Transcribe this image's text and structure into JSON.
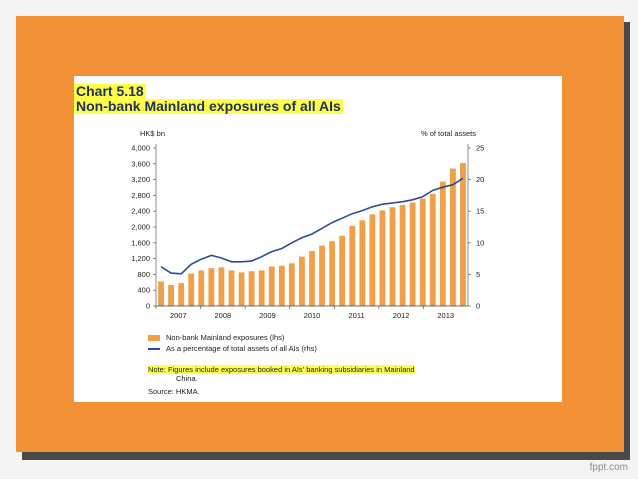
{
  "slide": {
    "watermark": "fppt.com"
  },
  "chart_data": {
    "type": "bar",
    "title_line1": "Chart 5.18",
    "title_line2": "Non-bank Mainland exposures of all AIs",
    "left_axis_label": "HK$ bn",
    "right_axis_label": "% of total assets",
    "x_tick_labels": [
      "2007",
      "2008",
      "2009",
      "2010",
      "2011",
      "2012",
      "2013"
    ],
    "y_left_ticks": [
      "0",
      "400",
      "800",
      "1,200",
      "1,600",
      "2,000",
      "2,400",
      "2,800",
      "3,200",
      "3,600",
      "4,000"
    ],
    "y_right_ticks": [
      "0",
      "5",
      "10",
      "15",
      "20",
      "25"
    ],
    "ylim_left": [
      0,
      4000
    ],
    "ylim_right": [
      0,
      25
    ],
    "series": [
      {
        "name": "Non-bank Mainland exposures (lhs)",
        "type": "bar",
        "axis": "left",
        "color": "#f0a04b",
        "values": [
          620,
          530,
          580,
          820,
          900,
          960,
          980,
          900,
          850,
          880,
          900,
          1000,
          1020,
          1080,
          1250,
          1390,
          1530,
          1640,
          1780,
          2030,
          2170,
          2320,
          2420,
          2500,
          2560,
          2620,
          2720,
          2840,
          3150,
          3480,
          3620
        ]
      },
      {
        "name": "As a percentage of total assets of all AIs (rhs)",
        "type": "line",
        "axis": "right",
        "color": "#2a4a9a",
        "values": [
          6.2,
          5.2,
          5.1,
          6.6,
          7.4,
          8.0,
          7.6,
          7.0,
          7.0,
          7.1,
          7.8,
          8.6,
          9.1,
          10.0,
          10.8,
          11.4,
          12.3,
          13.2,
          13.9,
          14.6,
          15.1,
          15.7,
          16.1,
          16.3,
          16.5,
          16.8,
          17.3,
          18.3,
          18.8,
          19.2,
          20.2
        ]
      }
    ],
    "legend_position": "bottom-left",
    "grid": false
  },
  "legend": {
    "bar_label": "Non-bank Mainland exposures (lhs)",
    "line_label": "As a percentage of total assets of all AIs (rhs)"
  },
  "note": {
    "line1": "Note:  Figures include exposures booked in AIs' banking subsidiaries in Mainland",
    "line2": "China."
  },
  "source": "Source: HKMA."
}
